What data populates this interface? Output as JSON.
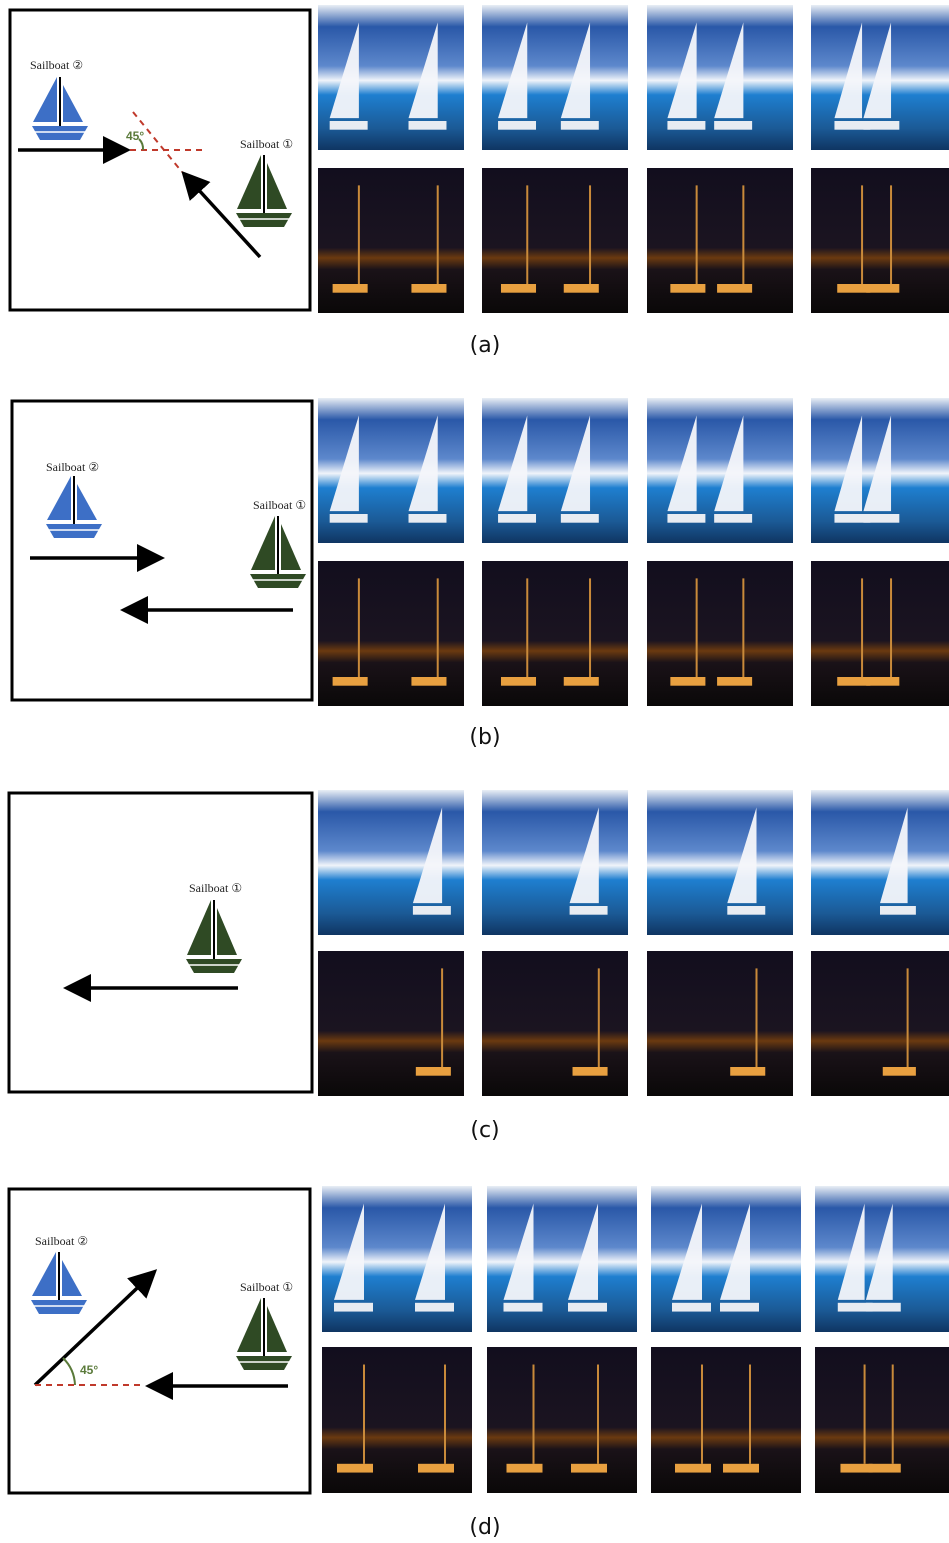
{
  "panels": [
    {
      "caption": "(a)",
      "angle": "45°",
      "boats": [
        {
          "label": "Sailboat ②"
        },
        {
          "label": "Sailboat ①"
        }
      ]
    },
    {
      "caption": "(b)",
      "boats": [
        {
          "label": "Sailboat ②"
        },
        {
          "label": "Sailboat ①"
        }
      ]
    },
    {
      "caption": "(c)",
      "boats": [
        {
          "label": "Sailboat ①"
        }
      ]
    },
    {
      "caption": "(d)",
      "angle": "45°",
      "boats": [
        {
          "label": "Sailboat ②"
        },
        {
          "label": "Sailboat ①"
        }
      ]
    }
  ]
}
